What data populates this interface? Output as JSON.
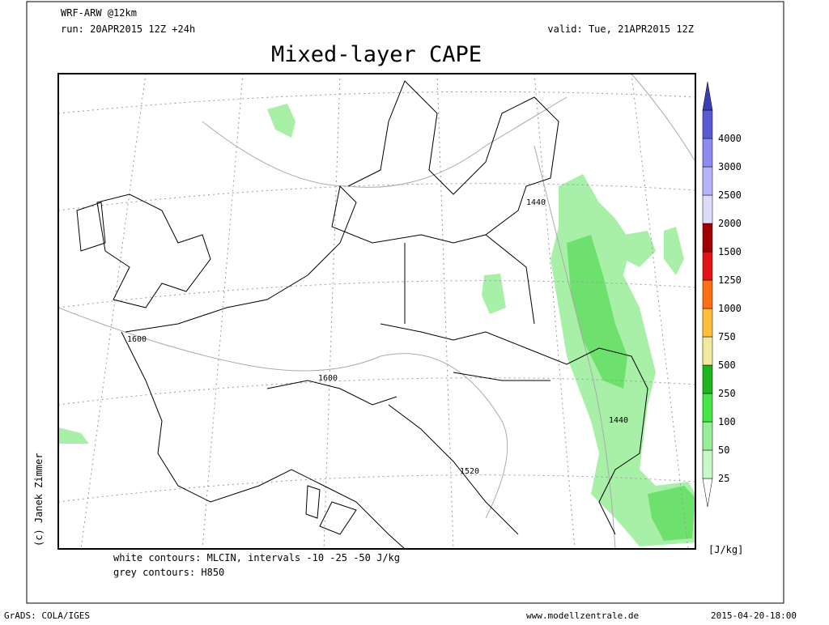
{
  "header": {
    "model": "WRF-ARW @12km",
    "run": "run: 20APR2015 12Z +24h",
    "valid": "valid: Tue, 21APR2015 12Z",
    "title": "Mixed-layer CAPE"
  },
  "map": {
    "contour_labels": [
      "1440",
      "1600",
      "1600",
      "1440",
      "1520"
    ],
    "credit": "(c) Janek Zimmer"
  },
  "colorbar": {
    "labels": [
      "25",
      "50",
      "100",
      "250",
      "500",
      "750",
      "1000",
      "1250",
      "1500",
      "2000",
      "2500",
      "3000",
      "4000"
    ],
    "colors": [
      "#ffffff",
      "#c8f8c8",
      "#96ee96",
      "#46e646",
      "#1eb41e",
      "#f0eaa0",
      "#ffbe3c",
      "#ff7014",
      "#e01414",
      "#a00000",
      "#dcdcfa",
      "#b4b4fa",
      "#8c8cf0",
      "#5a5ad2",
      "#3c3cb4"
    ],
    "unit": "[J/kg]"
  },
  "notes": [
    "white contours: MLCIN, intervals -10 -25 -50 J/kg",
    "grey contours: H850"
  ],
  "footer": {
    "software": "GrADS: COLA/IGES",
    "site": "www.modellzentrale.de",
    "timestamp": "2015-04-20-18:00"
  }
}
